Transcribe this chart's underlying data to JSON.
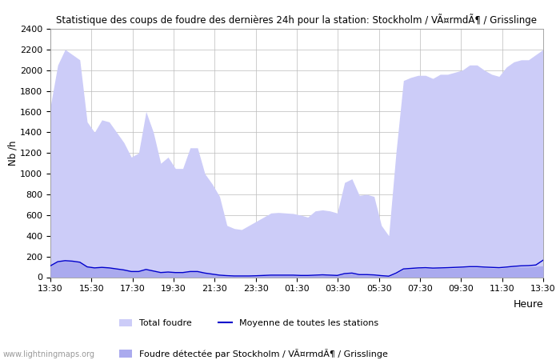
{
  "title": "Statistique des coups de foudre des dernières 24h pour la station: Stockholm / VÃ¤rmdÃ¶ / Grisslinge",
  "ylabel": "Nb /h",
  "heure_label": "Heure",
  "ylim": [
    0,
    2400
  ],
  "background_color": "#ffffff",
  "fill_color_total": "#ccccf8",
  "fill_color_station": "#aaaaee",
  "line_color": "#0000cc",
  "watermark": "www.lightningmaps.org",
  "legend_total": "Total foudre",
  "legend_moyenne": "Moyenne de toutes les stations",
  "legend_station": "Foudre détectée par Stockholm / VÃ¤rmdÃ¶ / Grisslinge",
  "x_tick_labels": [
    "13:30",
    "15:30",
    "17:30",
    "19:30",
    "21:30",
    "23:30",
    "01:30",
    "03:30",
    "05:30",
    "07:30",
    "09:30",
    "11:30",
    "13:30"
  ],
  "yticks": [
    0,
    200,
    400,
    600,
    800,
    1000,
    1200,
    1400,
    1600,
    1800,
    2000,
    2200,
    2400
  ],
  "total_foudre": [
    1650,
    2050,
    2200,
    2150,
    2100,
    1500,
    1400,
    1520,
    1500,
    1400,
    1300,
    1160,
    1200,
    1600,
    1400,
    1100,
    1160,
    1050,
    1050,
    1250,
    1250,
    1000,
    900,
    780,
    500,
    470,
    460,
    500,
    540,
    580,
    620,
    625,
    620,
    615,
    600,
    580,
    640,
    650,
    640,
    620,
    915,
    950,
    790,
    800,
    780,
    500,
    400,
    1210,
    1900,
    1930,
    1950,
    1950,
    1920,
    1960,
    1960,
    1980,
    2000,
    2050,
    2050,
    2000,
    1960,
    1940,
    2030,
    2080,
    2100,
    2100,
    2150,
    2200
  ],
  "station_foudre": [
    110,
    150,
    160,
    155,
    145,
    100,
    90,
    95,
    90,
    80,
    70,
    55,
    55,
    75,
    60,
    45,
    50,
    45,
    45,
    55,
    55,
    40,
    30,
    20,
    12,
    10,
    10,
    10,
    12,
    15,
    18,
    18,
    18,
    18,
    15,
    15,
    18,
    20,
    18,
    15,
    30,
    35,
    20,
    20,
    18,
    12,
    8,
    35,
    75,
    80,
    85,
    85,
    82,
    85,
    85,
    88,
    92,
    95,
    95,
    92,
    88,
    85,
    92,
    98,
    100,
    100,
    105,
    110
  ],
  "moyenne": [
    110,
    150,
    160,
    155,
    145,
    100,
    90,
    95,
    90,
    80,
    70,
    55,
    55,
    75,
    60,
    45,
    50,
    45,
    45,
    55,
    55,
    40,
    30,
    20,
    15,
    12,
    12,
    12,
    14,
    17,
    20,
    20,
    20,
    20,
    17,
    17,
    20,
    23,
    20,
    17,
    35,
    40,
    25,
    25,
    22,
    15,
    10,
    40,
    80,
    85,
    90,
    92,
    88,
    90,
    92,
    95,
    98,
    102,
    102,
    98,
    95,
    92,
    98,
    105,
    110,
    112,
    118,
    165
  ]
}
